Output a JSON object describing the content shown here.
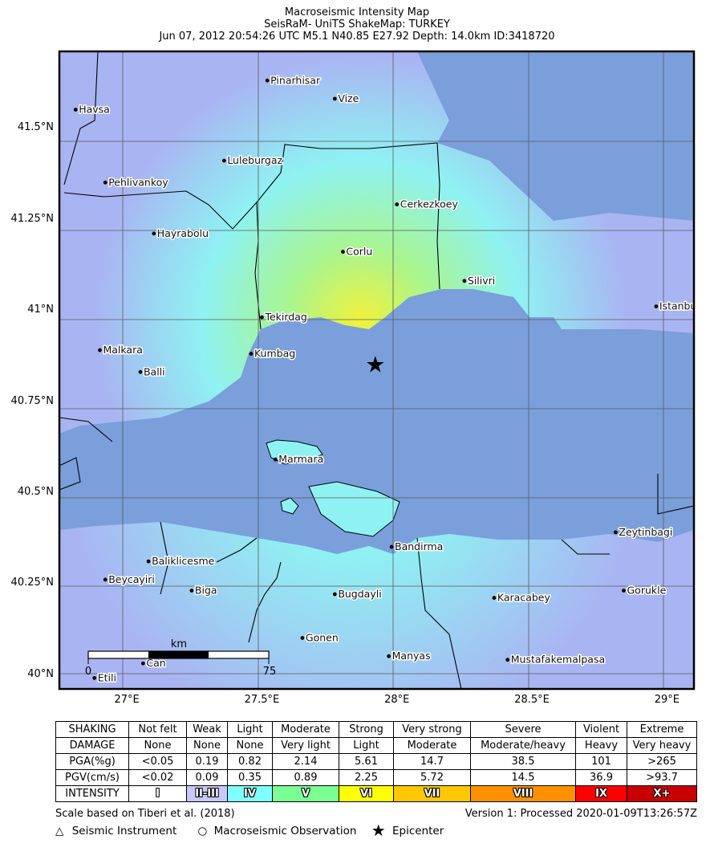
{
  "header": {
    "title_line1": "Macroseismic Intensity Map",
    "title_line2": "SeisRaM- UniTS ShakeMap: TURKEY",
    "title_line3": "Jun 07, 2012 20:54:26 UTC M5.1 N40.85 E27.92 Depth: 14.0km ID:3418720"
  },
  "map": {
    "lon_range": [
      26.75,
      29.1
    ],
    "lat_range": [
      39.96,
      41.71
    ],
    "lat_ticks": [
      {
        "value": 41.5,
        "label": "41.5°N"
      },
      {
        "value": 41.25,
        "label": "41.25°N"
      },
      {
        "value": 41.0,
        "label": "41°N"
      },
      {
        "value": 40.75,
        "label": "40.75°N"
      },
      {
        "value": 40.5,
        "label": "40.5°N"
      },
      {
        "value": 40.25,
        "label": "40.25°N"
      },
      {
        "value": 40.0,
        "label": "40°N"
      }
    ],
    "lon_ticks": [
      {
        "value": 27.0,
        "label": "27°E"
      },
      {
        "value": 27.5,
        "label": "27.5°E"
      },
      {
        "value": 28.0,
        "label": "28°E"
      },
      {
        "value": 28.5,
        "label": "28.5°E"
      },
      {
        "value": 29.0,
        "label": "29°E"
      }
    ],
    "colors": {
      "sea": "#7a9fdb",
      "land_low": "#a9b5f2",
      "land_cyan": "#8ff2f2",
      "land_green": "#a8f590",
      "land_yellow": "#f2f23a",
      "border": "#000000"
    },
    "epicenter": {
      "lon": 27.92,
      "lat": 40.85,
      "symbol": "★"
    },
    "scale_bar": {
      "unit": "km",
      "start_label": "0",
      "end_label": "75"
    },
    "cities": [
      {
        "name": "Pinarhisar",
        "lon": 27.52,
        "lat": 41.63
      },
      {
        "name": "Vize",
        "lon": 27.77,
        "lat": 41.58
      },
      {
        "name": "Havsa",
        "lon": 26.81,
        "lat": 41.55
      },
      {
        "name": "Luleburgaz",
        "lon": 27.36,
        "lat": 41.41
      },
      {
        "name": "Pehlivankoy",
        "lon": 26.92,
        "lat": 41.35
      },
      {
        "name": "Cerkezkoey",
        "lon": 28.0,
        "lat": 41.29
      },
      {
        "name": "Hayrabolu",
        "lon": 27.1,
        "lat": 41.21
      },
      {
        "name": "Corlu",
        "lon": 27.8,
        "lat": 41.16
      },
      {
        "name": "Silivri",
        "lon": 28.25,
        "lat": 41.08
      },
      {
        "name": "Istanbul",
        "lon": 28.96,
        "lat": 41.01
      },
      {
        "name": "Tekirdag",
        "lon": 27.5,
        "lat": 40.98
      },
      {
        "name": "Malkara",
        "lon": 26.9,
        "lat": 40.89
      },
      {
        "name": "Kumbag",
        "lon": 27.46,
        "lat": 40.88
      },
      {
        "name": "Balli",
        "lon": 27.05,
        "lat": 40.83
      },
      {
        "name": "Marmara",
        "lon": 27.55,
        "lat": 40.59
      },
      {
        "name": "Zeytinbagi",
        "lon": 28.81,
        "lat": 40.39
      },
      {
        "name": "Bandirma",
        "lon": 27.98,
        "lat": 40.35
      },
      {
        "name": "Baliklicesme",
        "lon": 27.08,
        "lat": 40.31
      },
      {
        "name": "Beycayiri",
        "lon": 26.92,
        "lat": 40.26
      },
      {
        "name": "Biga",
        "lon": 27.24,
        "lat": 40.23
      },
      {
        "name": "Bugdayli",
        "lon": 27.77,
        "lat": 40.22
      },
      {
        "name": "Karacabey",
        "lon": 28.36,
        "lat": 40.21
      },
      {
        "name": "Gorukle",
        "lon": 28.84,
        "lat": 40.23
      },
      {
        "name": "Gonen",
        "lon": 27.65,
        "lat": 40.1
      },
      {
        "name": "Manyas",
        "lon": 27.97,
        "lat": 40.05
      },
      {
        "name": "Mustafakemalpasa",
        "lon": 28.41,
        "lat": 40.04
      },
      {
        "name": "Can",
        "lon": 27.06,
        "lat": 40.03
      },
      {
        "name": "Etili",
        "lon": 26.88,
        "lat": 39.99
      }
    ]
  },
  "legend": {
    "shaking": {
      "label": "SHAKING",
      "values": [
        "Not felt",
        "Weak",
        "Light",
        "Moderate",
        "Strong",
        "Very strong",
        "Severe",
        "Violent",
        "Extreme"
      ]
    },
    "damage": {
      "label": "DAMAGE",
      "values": [
        "None",
        "None",
        "None",
        "Very light",
        "Light",
        "Moderate",
        "Moderate/heavy",
        "Heavy",
        "Very heavy"
      ]
    },
    "pga": {
      "label": "PGA(%g)",
      "values": [
        "<0.05",
        "0.19",
        "0.82",
        "2.14",
        "5.61",
        "14.7",
        "38.5",
        "101",
        ">265"
      ]
    },
    "pgv": {
      "label": "PGV(cm/s)",
      "values": [
        "<0.02",
        "0.09",
        "0.35",
        "0.89",
        "2.25",
        "5.72",
        "14.5",
        "36.9",
        ">93.7"
      ]
    },
    "intensity": {
      "label": "INTENSITY",
      "values": [
        "I",
        "II-III",
        "IV",
        "V",
        "VI",
        "VII",
        "VIII",
        "IX",
        "X+"
      ]
    },
    "intensity_colors": [
      "#ffffff",
      "#c8c8ff",
      "#80ffff",
      "#7aff93",
      "#ffff00",
      "#ffc800",
      "#ff9100",
      "#ff0000",
      "#c80000"
    ]
  },
  "footer": {
    "scale_note": "Scale based on Tiberi et al. (2018)",
    "version": "Version 1: Processed 2020-01-09T13:26:57Z",
    "seismic_instrument_symbol": "△",
    "seismic_instrument_label": "Seismic Instrument",
    "macroseismic_symbol": "○",
    "macroseismic_label": "Macroseismic Observation",
    "epicenter_symbol": "★",
    "epicenter_label": "Epicenter"
  }
}
